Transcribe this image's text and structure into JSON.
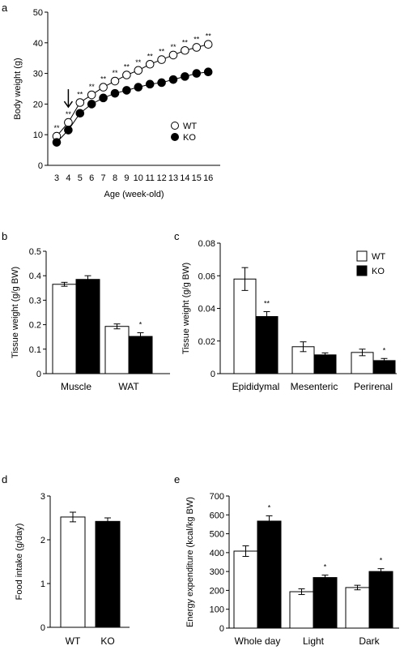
{
  "panels": {
    "a": {
      "letter": "a",
      "chart_data": {
        "type": "line",
        "xlabel": "Age (week-old)",
        "ylabel": "Body weight (g)",
        "ylim": [
          0,
          50
        ],
        "yticks": [
          "0",
          "10",
          "20",
          "30",
          "40",
          "50"
        ],
        "categories": [
          "3",
          "4",
          "5",
          "6",
          "7",
          "8",
          "9",
          "10",
          "11",
          "12",
          "13",
          "14",
          "15",
          "16"
        ],
        "series": [
          {
            "name": "WT",
            "marker": "open-circle",
            "values": [
              9.5,
              14,
              20.5,
              23,
              25.5,
              27.5,
              29.5,
              31,
              33,
              34.5,
              36,
              37.5,
              38.5,
              39.5
            ]
          },
          {
            "name": "KO",
            "marker": "filled-circle",
            "values": [
              7.5,
              11.5,
              17,
              20,
              22,
              23.5,
              24.5,
              25.5,
              26.5,
              27,
              28,
              29,
              30,
              30.5
            ]
          }
        ],
        "significance": [
          "**",
          "**",
          "**",
          "**",
          "**",
          "**",
          "**",
          "**",
          "**",
          "**",
          "**",
          "**",
          "**",
          "**"
        ],
        "arrow_category": "4",
        "legend_position": "right"
      }
    },
    "b": {
      "letter": "b",
      "chart_data": {
        "type": "bar",
        "ylabel": "Tissue weight (g/g BW)",
        "ylim": [
          0,
          0.5
        ],
        "yticks": [
          "0",
          "0.1",
          "0.2",
          "0.3",
          "0.4",
          "0.5"
        ],
        "categories": [
          "Muscle",
          "WAT"
        ],
        "series": [
          {
            "name": "WT",
            "fill": "#ffffff",
            "values": [
              0.365,
              0.193
            ],
            "errors": [
              0.008,
              0.01
            ]
          },
          {
            "name": "KO",
            "fill": "#000000",
            "values": [
              0.385,
              0.152
            ],
            "errors": [
              0.015,
              0.015
            ]
          }
        ],
        "significance": [
          {
            "category": 1,
            "series": 1,
            "text": "*"
          }
        ]
      }
    },
    "c": {
      "letter": "c",
      "chart_data": {
        "type": "bar",
        "ylabel": "Tissue weight (g/g BW)",
        "ylim": [
          0,
          0.08
        ],
        "yticks": [
          "0",
          "0.02",
          "0.04",
          "0.06",
          "0.08"
        ],
        "categories": [
          "Epididymal",
          "Mesenteric",
          "Perirenal"
        ],
        "series": [
          {
            "name": "WT",
            "fill": "#ffffff",
            "values": [
              0.058,
              0.0165,
              0.013
            ],
            "errors": [
              0.007,
              0.003,
              0.002
            ]
          },
          {
            "name": "KO",
            "fill": "#000000",
            "values": [
              0.035,
              0.0115,
              0.008
            ],
            "errors": [
              0.003,
              0.0012,
              0.0013
            ]
          }
        ],
        "significance": [
          {
            "category": 0,
            "series": 1,
            "text": "**"
          },
          {
            "category": 2,
            "series": 1,
            "text": "*"
          }
        ],
        "legend_position": "top-right"
      }
    },
    "d": {
      "letter": "d",
      "chart_data": {
        "type": "bar",
        "ylabel": "Food intake (g/day)",
        "ylim": [
          0,
          3
        ],
        "yticks": [
          "0",
          "1",
          "2",
          "3"
        ],
        "categories": [
          "WT",
          "KO"
        ],
        "series": [
          {
            "name": "",
            "fill": [
              "#ffffff",
              "#000000"
            ],
            "values": [
              2.52,
              2.42
            ],
            "errors": [
              0.11,
              0.08
            ]
          }
        ]
      }
    },
    "e": {
      "letter": "e",
      "chart_data": {
        "type": "bar",
        "ylabel": "Energy expenditure (kcal/kg BW)",
        "ylim": [
          0,
          700
        ],
        "yticks": [
          "0",
          "100",
          "200",
          "300",
          "400",
          "500",
          "600",
          "700"
        ],
        "categories": [
          "Whole day",
          "Light",
          "Dark"
        ],
        "series": [
          {
            "name": "WT",
            "fill": "#ffffff",
            "values": [
              408,
              193,
              215
            ],
            "errors": [
              28,
              15,
              12
            ]
          },
          {
            "name": "KO",
            "fill": "#000000",
            "values": [
              567,
              268,
              300
            ],
            "errors": [
              28,
              13,
              15
            ]
          }
        ],
        "significance": [
          {
            "category": 0,
            "series": 1,
            "text": "*"
          },
          {
            "category": 1,
            "series": 1,
            "text": "*"
          },
          {
            "category": 2,
            "series": 1,
            "text": "*"
          }
        ]
      }
    }
  }
}
